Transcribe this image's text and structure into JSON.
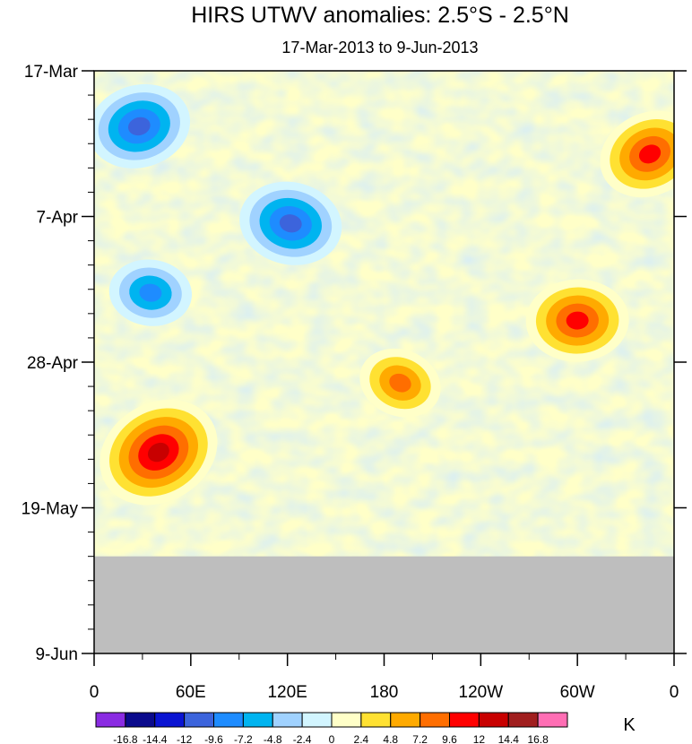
{
  "chart_data": {
    "type": "heatmap",
    "title": "HIRS UTWV anomalies: 2.5°S - 2.5°N",
    "subtitle": "17-Mar-2013 to 9-Jun-2013",
    "x_tick_labels": [
      "0",
      "60E",
      "120E",
      "180",
      "120W",
      "60W",
      "0"
    ],
    "x_tick_longitudes": [
      0,
      60,
      120,
      180,
      240,
      300,
      360
    ],
    "xlim": [
      0,
      360
    ],
    "y_tick_labels": [
      "17-Mar",
      "7-Apr",
      "28-Apr",
      "19-May",
      "9-Jun"
    ],
    "y_tick_days": [
      0,
      21,
      42,
      63,
      84
    ],
    "ylim_days": [
      0,
      84
    ],
    "missing_value_color": "#bebebe",
    "missing_from_day": 70,
    "colorbar": {
      "unit": "K",
      "levels": [
        "-16.8",
        "-14.4",
        "-12",
        "-9.6",
        "-7.2",
        "-4.8",
        "-2.4",
        "0",
        "2.4",
        "4.8",
        "7.2",
        "9.6",
        "12",
        "14.4",
        "16.8"
      ],
      "colors": [
        "#8a2be2",
        "#0a0a8c",
        "#0a14d2",
        "#3c64dc",
        "#1e8cff",
        "#00b4f0",
        "#a0d2ff",
        "#d2f5ff",
        "#ffffc8",
        "#ffe132",
        "#ffaa00",
        "#ff6e00",
        "#ff0000",
        "#c80000",
        "#a01e1e",
        "#ff6eb4"
      ]
    },
    "features": [
      {
        "lon": 40,
        "day": 55,
        "value": 14.4
      },
      {
        "lon": 35,
        "day": 32,
        "value": -9.6
      },
      {
        "lon": 28,
        "day": 8,
        "value": -12
      },
      {
        "lon": 190,
        "day": 45,
        "value": 9.6
      },
      {
        "lon": 300,
        "day": 36,
        "value": 12
      },
      {
        "lon": 345,
        "day": 12,
        "value": 12
      },
      {
        "lon": 122,
        "day": 22,
        "value": -12
      }
    ]
  }
}
